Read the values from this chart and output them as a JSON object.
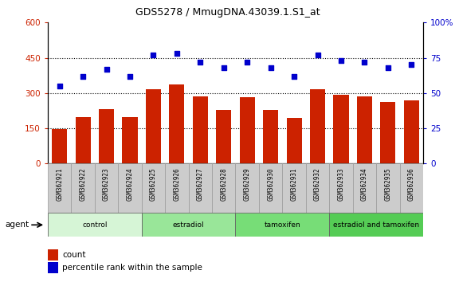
{
  "title": "GDS5278 / MmugDNA.43039.1.S1_at",
  "samples": [
    "GSM362921",
    "GSM362922",
    "GSM362923",
    "GSM362924",
    "GSM362925",
    "GSM362926",
    "GSM362927",
    "GSM362928",
    "GSM362929",
    "GSM362930",
    "GSM362931",
    "GSM362932",
    "GSM362933",
    "GSM362934",
    "GSM362935",
    "GSM362936"
  ],
  "counts": [
    148,
    198,
    230,
    198,
    318,
    335,
    285,
    228,
    283,
    228,
    196,
    318,
    292,
    287,
    262,
    270
  ],
  "percentile_ranks": [
    55,
    62,
    67,
    62,
    77,
    78,
    72,
    68,
    72,
    68,
    62,
    77,
    73,
    72,
    68,
    70
  ],
  "groups": [
    {
      "label": "control",
      "start": 0,
      "end": 4,
      "color": "#d6f5d6"
    },
    {
      "label": "estradiol",
      "start": 4,
      "end": 8,
      "color": "#99e699"
    },
    {
      "label": "tamoxifen",
      "start": 8,
      "end": 12,
      "color": "#77dd77"
    },
    {
      "label": "estradiol and tamoxifen",
      "start": 12,
      "end": 16,
      "color": "#55cc55"
    }
  ],
  "bar_color": "#cc2200",
  "scatter_color": "#0000cc",
  "left_ylim": [
    0,
    600
  ],
  "right_ylim": [
    0,
    100
  ],
  "left_yticks": [
    0,
    150,
    300,
    450,
    600
  ],
  "right_yticks": [
    0,
    25,
    50,
    75,
    100
  ],
  "grid_lines": [
    150,
    300,
    450
  ],
  "tick_label_color_left": "#cc2200",
  "tick_label_color_right": "#0000cc",
  "legend_count_label": "count",
  "legend_pct_label": "percentile rank within the sample",
  "agent_label": "agent"
}
